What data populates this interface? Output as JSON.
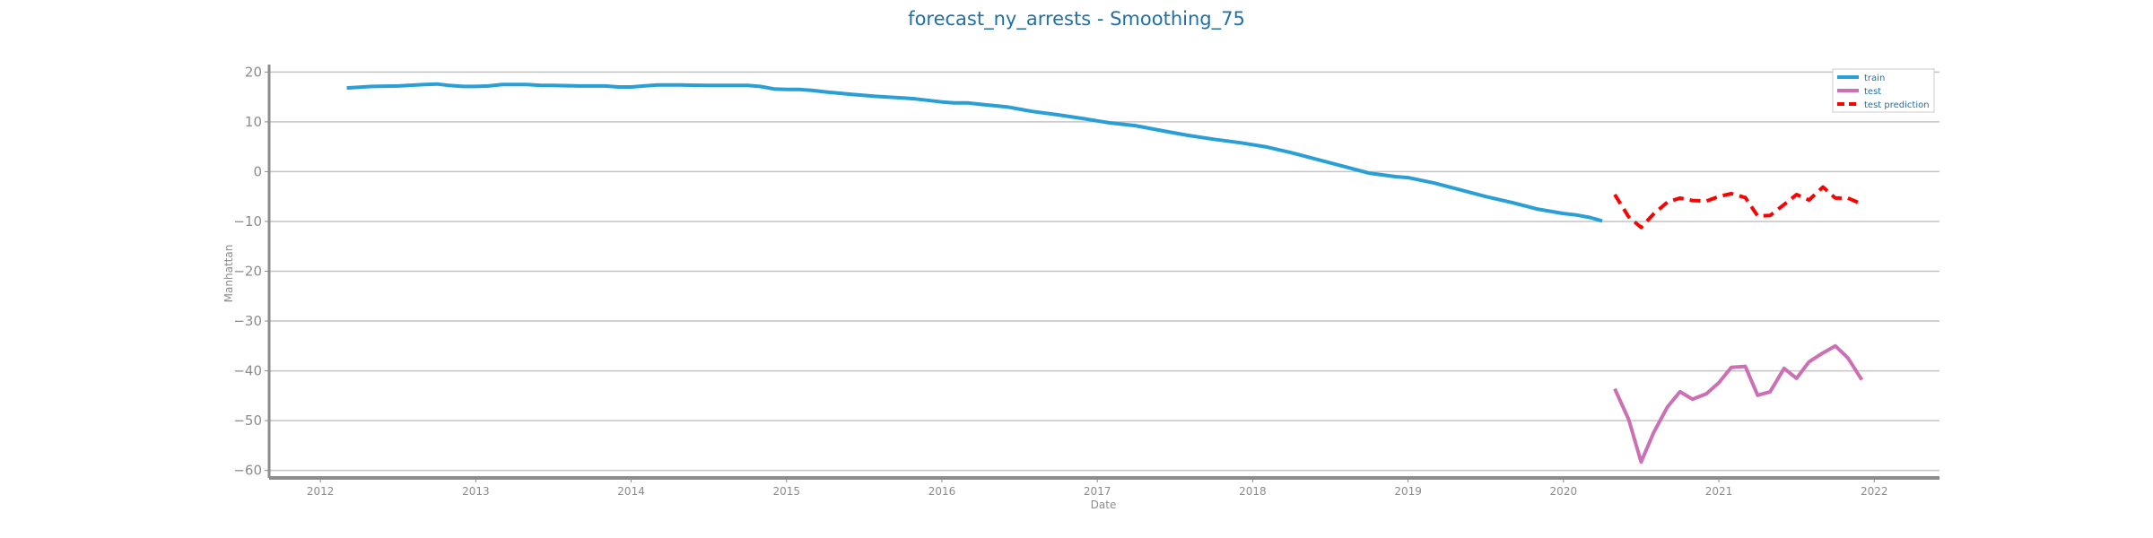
{
  "chart_data": {
    "type": "line",
    "title": "forecast_ny_arrests - Smoothing_75",
    "xlabel": "Date",
    "ylabel": "Manhattan",
    "xlim": [
      2011.67,
      2022.42
    ],
    "ylim": [
      -61.5,
      21.5
    ],
    "yticks": [
      20,
      10,
      0,
      -10,
      -20,
      -30,
      -40,
      -50,
      -60
    ],
    "xticks": [
      2012,
      2013,
      2014,
      2015,
      2016,
      2017,
      2018,
      2019,
      2020,
      2021,
      2022
    ],
    "grid": "horizontal",
    "legend_position": "top-right",
    "colors": {
      "train": "#2a9fd6",
      "test": "#cc6fb3",
      "test prediction": "#ff0000",
      "title": "#1f6fa8"
    },
    "series": [
      {
        "name": "train",
        "style": "solid",
        "x": [
          2012.17,
          2012.33,
          2012.5,
          2012.67,
          2012.75,
          2012.83,
          2012.92,
          2013.0,
          2013.08,
          2013.17,
          2013.33,
          2013.42,
          2013.5,
          2013.67,
          2013.83,
          2013.92,
          2014.0,
          2014.08,
          2014.17,
          2014.33,
          2014.5,
          2014.67,
          2014.75,
          2014.83,
          2014.92,
          2015.0,
          2015.08,
          2015.17,
          2015.25,
          2015.42,
          2015.58,
          2015.75,
          2015.83,
          2016.0,
          2016.08,
          2016.17,
          2016.25,
          2016.42,
          2016.58,
          2016.75,
          2016.92,
          2017.0,
          2017.08,
          2017.25,
          2017.42,
          2017.58,
          2017.75,
          2017.92,
          2018.08,
          2018.25,
          2018.42,
          2018.58,
          2018.75,
          2018.92,
          2019.0,
          2019.17,
          2019.33,
          2019.5,
          2019.67,
          2019.83,
          2020.0,
          2020.08,
          2020.17,
          2020.25
        ],
        "values": [
          16.8,
          17.1,
          17.2,
          17.5,
          17.6,
          17.3,
          17.1,
          17.1,
          17.2,
          17.5,
          17.5,
          17.3,
          17.3,
          17.2,
          17.2,
          17.0,
          17.0,
          17.2,
          17.4,
          17.4,
          17.3,
          17.3,
          17.3,
          17.1,
          16.6,
          16.5,
          16.5,
          16.3,
          16.0,
          15.5,
          15.1,
          14.8,
          14.6,
          14.0,
          13.8,
          13.8,
          13.5,
          13.0,
          12.1,
          11.4,
          10.6,
          10.2,
          9.8,
          9.2,
          8.2,
          7.3,
          6.5,
          5.8,
          5.0,
          3.8,
          2.4,
          1.1,
          -0.3,
          -1.0,
          -1.2,
          -2.3,
          -3.6,
          -5.0,
          -6.2,
          -7.5,
          -8.4,
          -8.7,
          -9.2,
          -9.9
        ]
      },
      {
        "name": "test",
        "style": "solid",
        "x": [
          2020.33,
          2020.42,
          2020.5,
          2020.58,
          2020.67,
          2020.75,
          2020.83,
          2020.92,
          2021.0,
          2021.08,
          2021.17,
          2021.25,
          2021.33,
          2021.42,
          2021.5,
          2021.58,
          2021.67,
          2021.75,
          2021.83,
          2021.92
        ],
        "values": [
          -43.6,
          -49.8,
          -58.3,
          -52.4,
          -47.2,
          -44.2,
          -45.7,
          -44.6,
          -42.4,
          -39.3,
          -39.1,
          -44.9,
          -44.2,
          -39.5,
          -41.5,
          -38.2,
          -36.4,
          -35.0,
          -37.4,
          -41.8
        ]
      },
      {
        "name": "test prediction",
        "style": "dashed",
        "x": [
          2020.33,
          2020.42,
          2020.5,
          2020.58,
          2020.67,
          2020.75,
          2020.83,
          2020.92,
          2021.0,
          2021.08,
          2021.17,
          2021.25,
          2021.33,
          2021.42,
          2021.5,
          2021.58,
          2021.67,
          2021.75,
          2021.83,
          2021.92
        ],
        "values": [
          -4.6,
          -9.1,
          -11.2,
          -8.5,
          -6.1,
          -5.3,
          -5.8,
          -5.9,
          -5.0,
          -4.4,
          -5.2,
          -8.9,
          -8.8,
          -6.6,
          -4.6,
          -5.7,
          -3.1,
          -5.3,
          -5.3,
          -6.5
        ]
      }
    ]
  }
}
